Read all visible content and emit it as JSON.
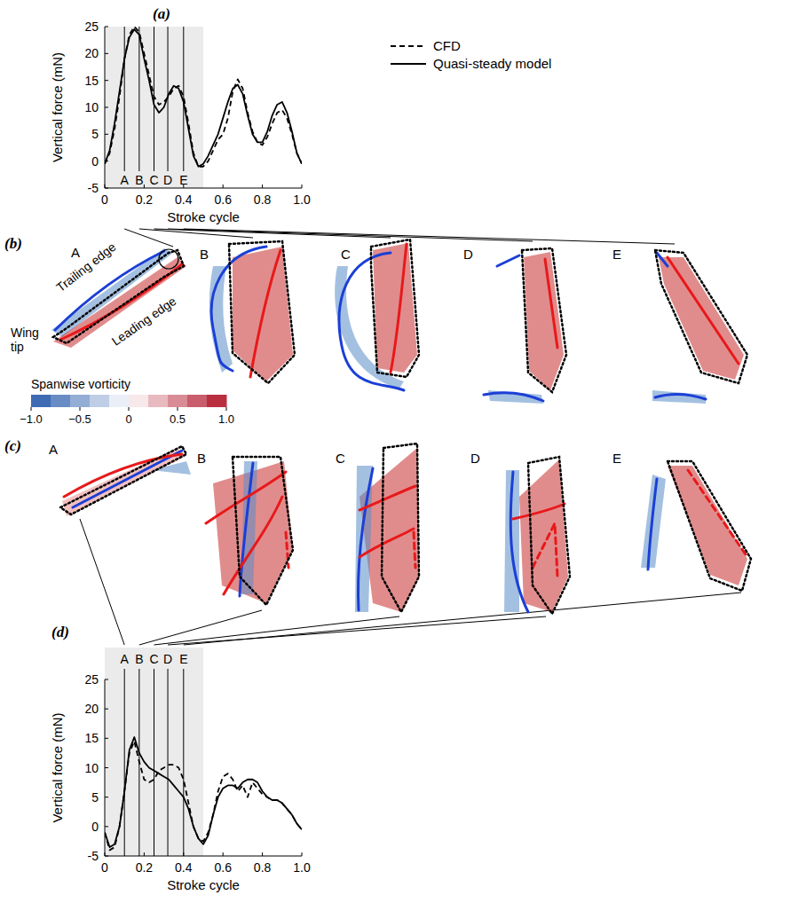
{
  "chart_data": [
    {
      "type": "line",
      "title": "(a)",
      "x_label": "Stroke cycle",
      "y_label": "Vertical force (mN)",
      "xlim": [
        0,
        1
      ],
      "xticks": [
        0,
        0.2,
        0.4,
        0.6,
        0.8,
        {
          "value": 1,
          "label": "1.0"
        }
      ],
      "ylim": [
        -5,
        25
      ],
      "yticks": [
        -5,
        0,
        5,
        10,
        15,
        20,
        25
      ],
      "legend": "right",
      "x": [
        0,
        0.025,
        0.05,
        0.075,
        0.1,
        0.125,
        0.15,
        0.175,
        0.2,
        0.225,
        0.25,
        0.275,
        0.3,
        0.325,
        0.35,
        0.375,
        0.4,
        0.425,
        0.45,
        0.475,
        0.5,
        0.525,
        0.55,
        0.575,
        0.6,
        0.625,
        0.65,
        0.675,
        0.7,
        0.725,
        0.75,
        0.775,
        0.8,
        0.825,
        0.85,
        0.875,
        0.9,
        0.925,
        0.95,
        0.975,
        1
      ],
      "series": [
        {
          "name": "CFD",
          "color": "#000000",
          "line_style": "dashed",
          "values": [
            -0.5,
            1.5,
            6,
            12,
            19,
            23.5,
            25,
            24,
            20,
            16,
            12,
            10.5,
            11,
            12,
            13.5,
            14,
            12,
            7,
            1.5,
            -1,
            -1,
            0,
            2,
            4,
            5,
            8,
            13,
            15.2,
            13.5,
            9,
            5.5,
            3.5,
            3,
            4.5,
            7,
            9,
            9.5,
            8,
            5,
            1.5,
            -0.5
          ]
        },
        {
          "name": "Quasi-steady model",
          "color": "#000000",
          "line_style": "solid",
          "values": [
            -0.5,
            2,
            7,
            13,
            19,
            23,
            24.5,
            23.5,
            19,
            15,
            10.5,
            9,
            10,
            12.5,
            14,
            13.5,
            11,
            6,
            1,
            -1,
            -0.5,
            1,
            3,
            5,
            8,
            11,
            13.5,
            14.2,
            12.5,
            8.5,
            5,
            3.5,
            3.5,
            5.5,
            8.5,
            10.5,
            11,
            9,
            5.5,
            1.5,
            -0.5
          ]
        }
      ],
      "annotations": {
        "shaded": [
          0,
          0.5
        ],
        "snapshots": [
          {
            "x": 0.1,
            "label": "A"
          },
          {
            "x": 0.175,
            "label": "B"
          },
          {
            "x": 0.25,
            "label": "C"
          },
          {
            "x": 0.32,
            "label": "D"
          },
          {
            "x": 0.4,
            "label": "E"
          }
        ]
      }
    },
    {
      "type": "line",
      "title": "(d)",
      "x_label": "Stroke cycle",
      "y_label": "Vertical force (mN)",
      "xlim": [
        0,
        1
      ],
      "xticks": [
        0,
        0.2,
        0.4,
        0.6,
        0.8,
        {
          "value": 1,
          "label": "1.0"
        }
      ],
      "ylim": [
        -5,
        25
      ],
      "yticks": [
        -5,
        0,
        5,
        10,
        15,
        20,
        25
      ],
      "x": [
        0,
        0.025,
        0.05,
        0.075,
        0.1,
        0.125,
        0.15,
        0.175,
        0.2,
        0.225,
        0.25,
        0.275,
        0.3,
        0.325,
        0.35,
        0.375,
        0.4,
        0.425,
        0.45,
        0.475,
        0.5,
        0.525,
        0.55,
        0.575,
        0.6,
        0.625,
        0.65,
        0.675,
        0.7,
        0.725,
        0.75,
        0.775,
        0.8,
        0.825,
        0.85,
        0.875,
        0.9,
        0.925,
        0.95,
        0.975,
        1
      ],
      "series": [
        {
          "name": "CFD",
          "color": "#000000",
          "line_style": "dashed",
          "values": [
            -1,
            -4,
            -3.5,
            0,
            6,
            12.5,
            14.5,
            11,
            8,
            7.5,
            8,
            9.5,
            10,
            10.5,
            10.5,
            10,
            8,
            4,
            0,
            -2,
            -2.5,
            -1,
            2,
            6,
            8.5,
            9,
            8,
            6,
            7,
            5,
            7.5,
            6.5,
            5.5,
            5,
            4.5,
            4.5,
            4,
            3,
            2,
            0.5,
            -0.5
          ]
        },
        {
          "name": "Quasi-steady model",
          "color": "#000000",
          "line_style": "solid",
          "values": [
            -1,
            -3.5,
            -3,
            0,
            6,
            13,
            15.2,
            12.5,
            11,
            10,
            9.5,
            9,
            8.5,
            8,
            7,
            6,
            5,
            3,
            0,
            -2,
            -3,
            -1.5,
            2,
            5,
            6.5,
            7,
            7,
            6.5,
            7.5,
            8,
            8,
            7.5,
            6,
            5,
            4.5,
            4.5,
            4,
            3,
            2,
            0.5,
            -0.5
          ]
        }
      ],
      "annotations": {
        "shaded": [
          0,
          0.5
        ],
        "snapshots": [
          {
            "x": 0.1,
            "label": "A"
          },
          {
            "x": 0.175,
            "label": "B"
          },
          {
            "x": 0.25,
            "label": "C"
          },
          {
            "x": 0.32,
            "label": "D"
          },
          {
            "x": 0.4,
            "label": "E"
          }
        ]
      }
    }
  ],
  "snapshots": {
    "rows": [
      {
        "panel": "(b)",
        "labels": [
          "A",
          "B",
          "C",
          "D",
          "E"
        ]
      },
      {
        "panel": "(c)",
        "labels": [
          "A",
          "B",
          "C",
          "D",
          "E"
        ]
      }
    ],
    "edge_labels": {
      "trailing_edge": "Trailing edge",
      "leading_edge": "Leading edge",
      "wing_tip": "Wing tip"
    },
    "colorbar": {
      "label": "Spanwise vorticity",
      "range": [
        -1,
        1
      ],
      "ticks": [
        {
          "value": -1,
          "label": "−1.0"
        },
        {
          "value": -0.5,
          "label": "−0.5"
        },
        0,
        0.5,
        {
          "value": 1,
          "label": "1.0"
        }
      ]
    }
  }
}
